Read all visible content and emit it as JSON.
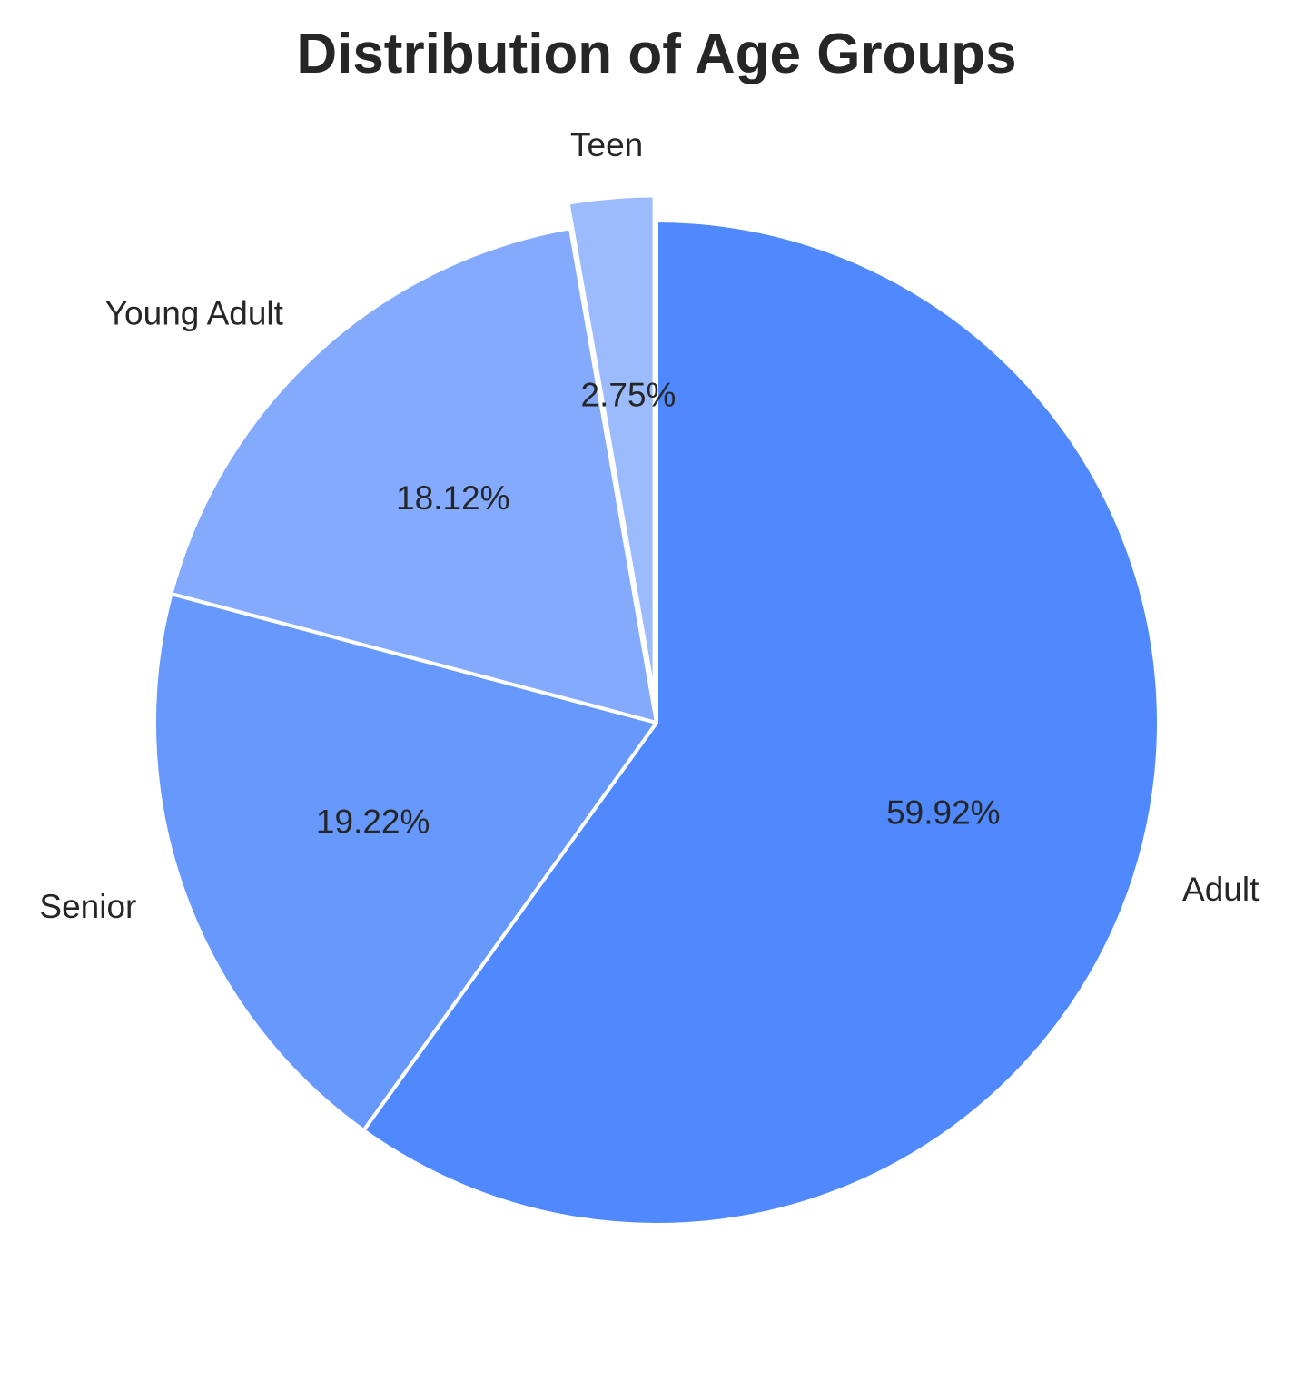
{
  "chart_data": {
    "type": "pie",
    "title": "Distribution of Age Groups",
    "slices": [
      {
        "label": "Adult",
        "value": 59.92,
        "pct_label": "59.92%",
        "color": "#4f89fd",
        "explode": 0
      },
      {
        "label": "Senior",
        "value": 19.22,
        "pct_label": "19.22%",
        "color": "#6799fd",
        "explode": 0
      },
      {
        "label": "Young Adult",
        "value": 18.12,
        "pct_label": "18.12%",
        "color": "#83aafd",
        "explode": 0
      },
      {
        "label": "Teen",
        "value": 2.75,
        "pct_label": "2.75%",
        "color": "#9bbbfd",
        "explode": 0.05
      }
    ],
    "start_angle": "top",
    "direction": "clockwise",
    "legend": "none"
  }
}
